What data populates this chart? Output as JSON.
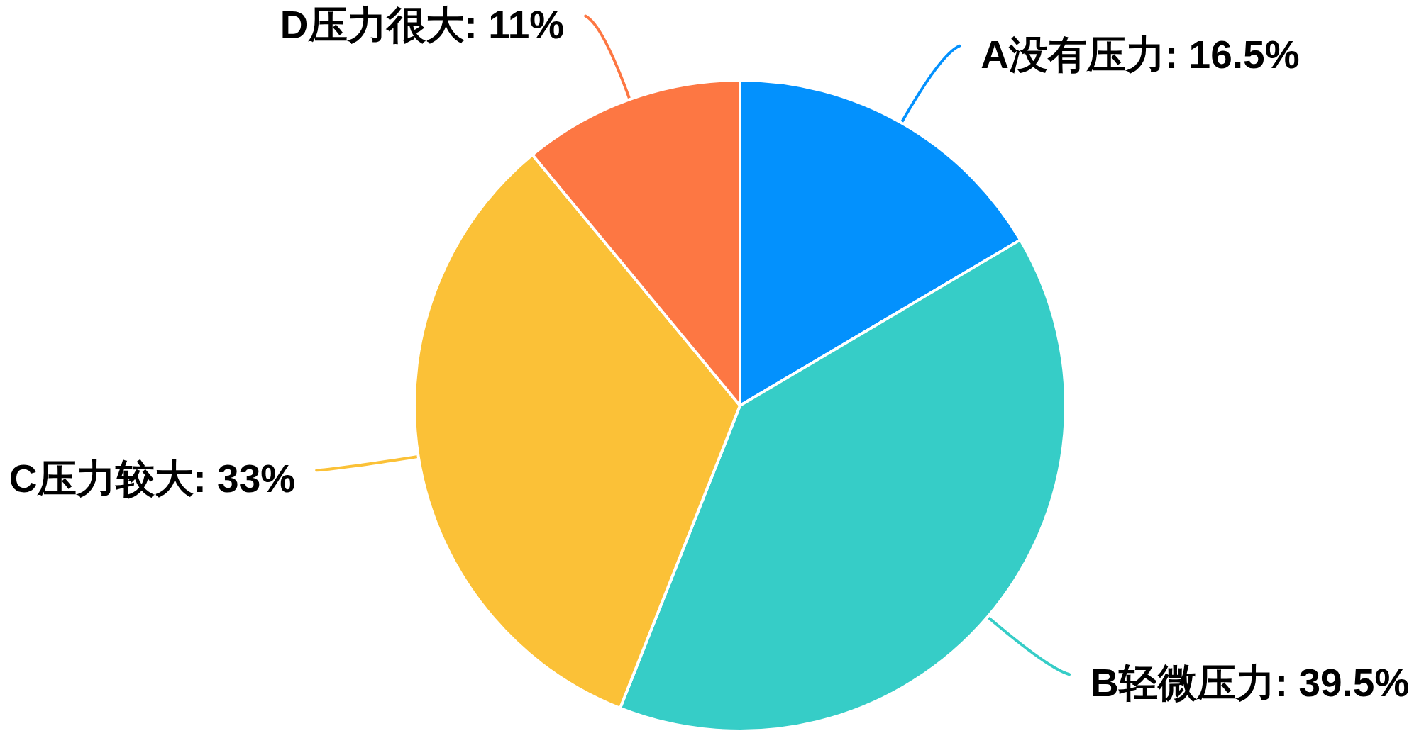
{
  "chart_data": {
    "type": "pie",
    "categories": [
      "A没有压力",
      "B轻微压力",
      "C压力较大",
      "D压力很大"
    ],
    "values": [
      16.5,
      39.5,
      33,
      11
    ],
    "colors": [
      "#0391fd",
      "#36cdc7",
      "#fbc137",
      "#fd7743"
    ],
    "value_labels": [
      "16.5%",
      "39.5%",
      "33%",
      "11%"
    ]
  }
}
